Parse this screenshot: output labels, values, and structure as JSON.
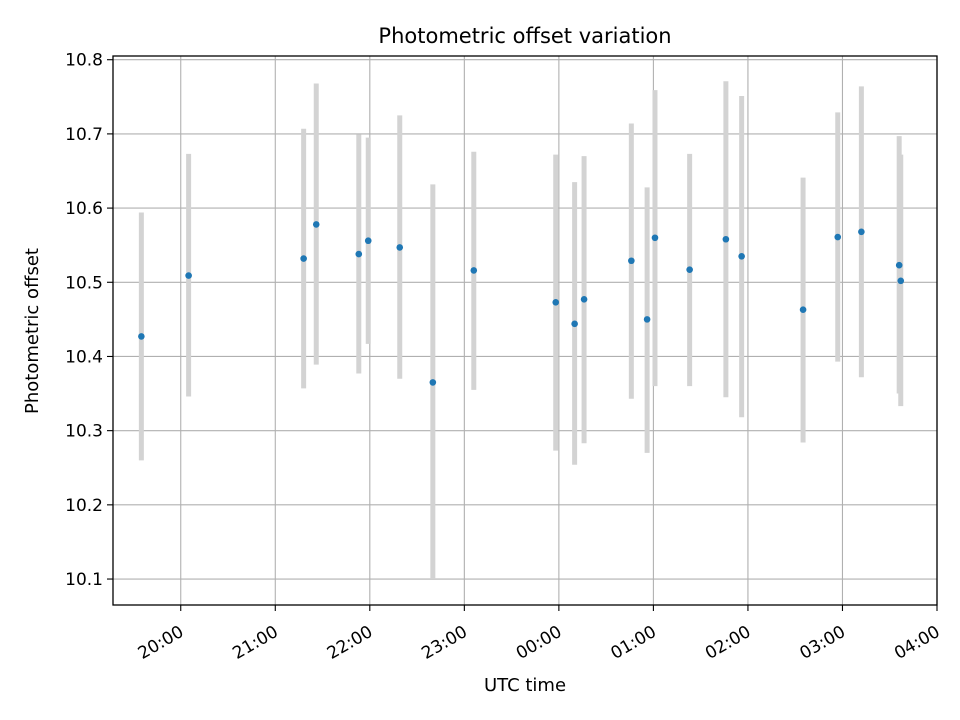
{
  "chart_data": {
    "type": "scatter",
    "title": "Photometric offset variation",
    "xlabel": "UTC time",
    "ylabel": "Photometric offset",
    "grid": true,
    "legend": "none",
    "x_axis": {
      "type": "time",
      "range": [
        "2000-01-01T19:17:00",
        "2000-01-02T04:00:00"
      ],
      "ticks": [
        {
          "t": "2000-01-01T20:00:00",
          "label": "20:00"
        },
        {
          "t": "2000-01-01T21:00:00",
          "label": "21:00"
        },
        {
          "t": "2000-01-01T22:00:00",
          "label": "22:00"
        },
        {
          "t": "2000-01-01T23:00:00",
          "label": "23:00"
        },
        {
          "t": "2000-01-02T00:00:00",
          "label": "00:00"
        },
        {
          "t": "2000-01-02T01:00:00",
          "label": "01:00"
        },
        {
          "t": "2000-01-02T02:00:00",
          "label": "02:00"
        },
        {
          "t": "2000-01-02T03:00:00",
          "label": "03:00"
        },
        {
          "t": "2000-01-02T04:00:00",
          "label": "04:00"
        }
      ]
    },
    "y_axis": {
      "range": [
        10.065,
        10.805
      ],
      "ticks": [
        10.1,
        10.2,
        10.3,
        10.4,
        10.5,
        10.6,
        10.7,
        10.8
      ],
      "tick_labels": [
        "10.1",
        "10.2",
        "10.3",
        "10.4",
        "10.5",
        "10.6",
        "10.7",
        "10.8"
      ]
    },
    "colors": {
      "points": "#1f77b4",
      "errorbars": "#d3d3d3",
      "grid": "#b0b0b0"
    },
    "series": [
      {
        "points": [
          {
            "t": "2000-01-01T19:35:00",
            "y": 10.427,
            "lo": 10.26,
            "hi": 10.594
          },
          {
            "t": "2000-01-01T20:05:00",
            "y": 10.509,
            "lo": 10.346,
            "hi": 10.673
          },
          {
            "t": "2000-01-01T21:18:00",
            "y": 10.532,
            "lo": 10.357,
            "hi": 10.707
          },
          {
            "t": "2000-01-01T21:26:00",
            "y": 10.578,
            "lo": 10.389,
            "hi": 10.768
          },
          {
            "t": "2000-01-01T21:53:00",
            "y": 10.538,
            "lo": 10.377,
            "hi": 10.699
          },
          {
            "t": "2000-01-01T21:59:00",
            "y": 10.556,
            "lo": 10.417,
            "hi": 10.695
          },
          {
            "t": "2000-01-01T22:19:00",
            "y": 10.547,
            "lo": 10.37,
            "hi": 10.725
          },
          {
            "t": "2000-01-01T22:40:00",
            "y": 10.365,
            "lo": 10.1,
            "hi": 10.632
          },
          {
            "t": "2000-01-01T23:06:00",
            "y": 10.516,
            "lo": 10.355,
            "hi": 10.676
          },
          {
            "t": "2000-01-01T23:58:00",
            "y": 10.473,
            "lo": 10.273,
            "hi": 10.672
          },
          {
            "t": "2000-01-02T00:10:00",
            "y": 10.444,
            "lo": 10.254,
            "hi": 10.635
          },
          {
            "t": "2000-01-02T00:16:00",
            "y": 10.477,
            "lo": 10.283,
            "hi": 10.67
          },
          {
            "t": "2000-01-02T00:46:00",
            "y": 10.529,
            "lo": 10.343,
            "hi": 10.714
          },
          {
            "t": "2000-01-02T00:56:00",
            "y": 10.45,
            "lo": 10.27,
            "hi": 10.628
          },
          {
            "t": "2000-01-02T01:01:00",
            "y": 10.56,
            "lo": 10.36,
            "hi": 10.759
          },
          {
            "t": "2000-01-02T01:23:00",
            "y": 10.517,
            "lo": 10.36,
            "hi": 10.673
          },
          {
            "t": "2000-01-02T01:46:00",
            "y": 10.558,
            "lo": 10.345,
            "hi": 10.771
          },
          {
            "t": "2000-01-02T01:56:00",
            "y": 10.535,
            "lo": 10.318,
            "hi": 10.751
          },
          {
            "t": "2000-01-02T02:35:00",
            "y": 10.463,
            "lo": 10.284,
            "hi": 10.641
          },
          {
            "t": "2000-01-02T02:57:00",
            "y": 10.561,
            "lo": 10.393,
            "hi": 10.729
          },
          {
            "t": "2000-01-02T03:12:00",
            "y": 10.568,
            "lo": 10.372,
            "hi": 10.764
          },
          {
            "t": "2000-01-02T03:36:00",
            "y": 10.523,
            "lo": 10.35,
            "hi": 10.697
          },
          {
            "t": "2000-01-02T03:37:00",
            "y": 10.502,
            "lo": 10.333,
            "hi": 10.672
          }
        ]
      }
    ]
  }
}
